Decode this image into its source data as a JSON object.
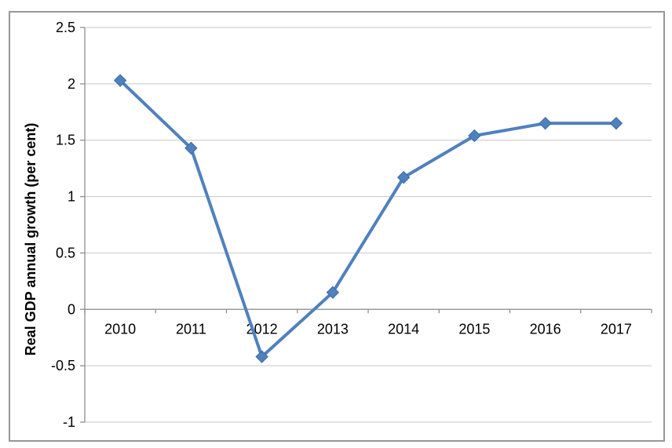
{
  "chart_data": {
    "type": "line",
    "title": "",
    "ylabel": "Real GDP annual growth (per cent)",
    "xlabel": "",
    "categories": [
      "2010",
      "2011",
      "2012",
      "2013",
      "2014",
      "2015",
      "2016",
      "2017"
    ],
    "series": [
      {
        "name": "Real GDP annual growth",
        "values": [
          2.03,
          1.43,
          -0.42,
          0.15,
          1.17,
          1.54,
          1.65,
          1.65
        ]
      }
    ],
    "ylim": [
      -1,
      2.5
    ],
    "y_ticks": [
      2.5,
      2,
      1.5,
      1,
      0.5,
      0,
      -0.5,
      -1
    ],
    "y_tick_labels": [
      "2.5",
      "2",
      "1.5",
      "1",
      "0.5",
      "0",
      "-0.5",
      "-1"
    ],
    "x_axis_position": 0,
    "grid": "horizontal",
    "legend": "none",
    "marker": "diamond",
    "colors": {
      "series": "#4F81BD",
      "marker_outline": "#3A6BA6",
      "gridline": "#C6C6C6",
      "axis": "#8E8E8E",
      "frame_border": "#979797",
      "text": "#000000",
      "background": "#FFFFFF"
    }
  }
}
